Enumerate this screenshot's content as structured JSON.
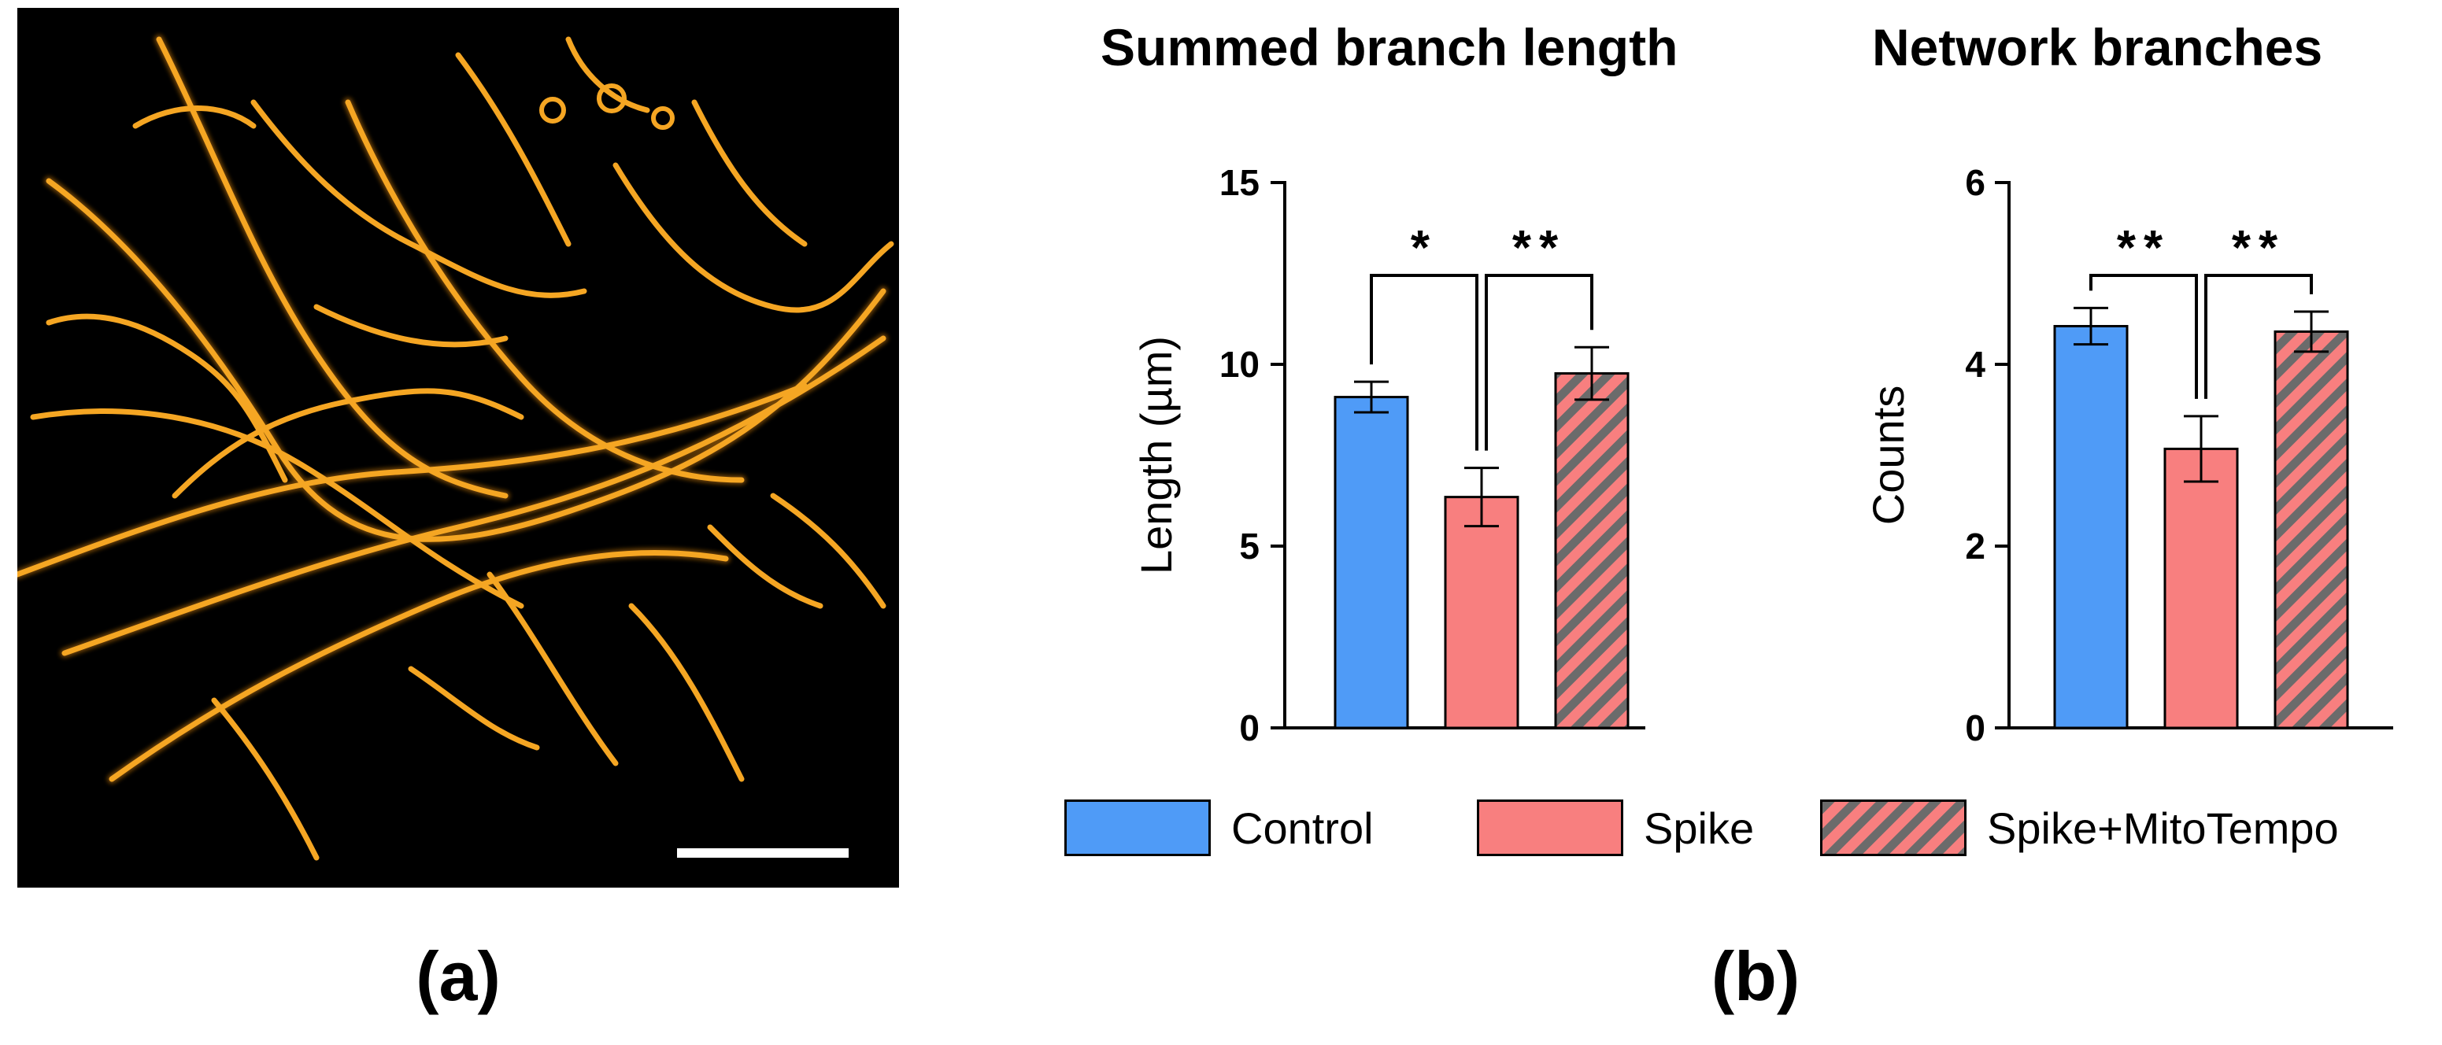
{
  "panels": {
    "a_label": "(a)",
    "b_label": "(b)"
  },
  "colors": {
    "control": "#4f9bf7",
    "spike": "#f87f7f",
    "hatch": "#6b6b6b",
    "mito_glow": "#f5a623",
    "scale_bar": "#ffffff"
  },
  "legend": [
    {
      "label": "Control",
      "fill": "control"
    },
    {
      "label": "Spike",
      "fill": "spike"
    },
    {
      "label": "Spike+MitoTempo",
      "fill": "spike-hatched"
    }
  ],
  "chart_data": [
    {
      "type": "bar",
      "title": "Summed branch length",
      "ylabel": "Length (µm)",
      "xlabel": "",
      "ylim": [
        0,
        15
      ],
      "yticks": [
        "0",
        "5",
        "10",
        "15"
      ],
      "categories": [
        "Control",
        "Spike",
        "Spike+MitoTempo"
      ],
      "values": [
        9.1,
        6.35,
        9.75
      ],
      "errors": [
        0.42,
        0.8,
        0.72
      ],
      "significance": [
        {
          "from": 0,
          "to": 1,
          "label": "*"
        },
        {
          "from": 1,
          "to": 2,
          "label": "**"
        }
      ]
    },
    {
      "type": "bar",
      "title": "Network branches",
      "ylabel": "Counts",
      "xlabel": "",
      "ylim": [
        0,
        6
      ],
      "yticks": [
        "0",
        "2",
        "4",
        "6"
      ],
      "categories": [
        "Control",
        "Spike",
        "Spike+MitoTempo"
      ],
      "values": [
        4.42,
        3.07,
        4.36
      ],
      "errors": [
        0.2,
        0.36,
        0.22
      ],
      "significance": [
        {
          "from": 0,
          "to": 1,
          "label": "**"
        },
        {
          "from": 1,
          "to": 2,
          "label": "**"
        }
      ]
    }
  ]
}
